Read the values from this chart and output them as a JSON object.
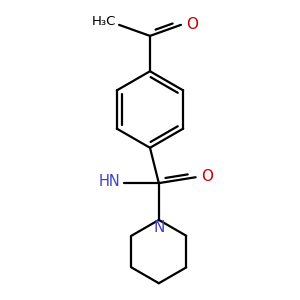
{
  "bg_color": "#ffffff",
  "bond_color": "#000000",
  "N_color": "#4040cc",
  "O_color": "#cc0000",
  "line_width": 1.6,
  "figsize": [
    3.0,
    3.0
  ],
  "dpi": 100,
  "xlim": [
    -1.4,
    1.4
  ],
  "ylim": [
    -2.2,
    1.8
  ]
}
